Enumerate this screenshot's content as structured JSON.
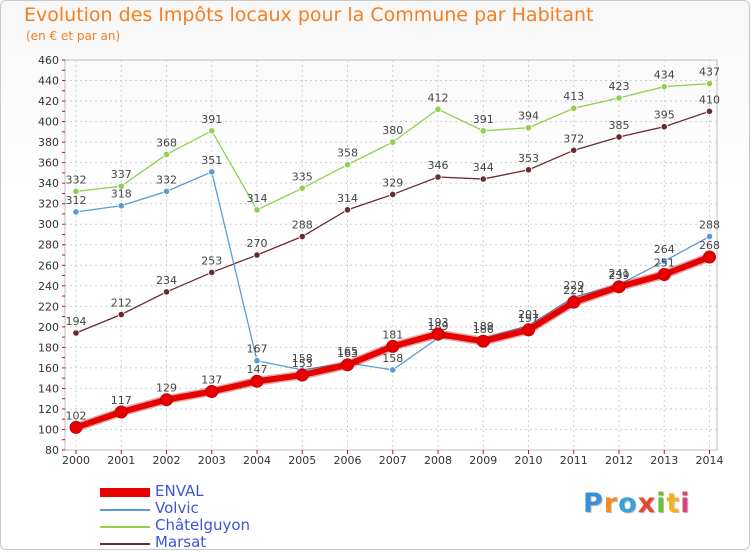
{
  "title": "Evolution des Impôts locaux pour la Commune par Habitant",
  "subtitle": "(en € et par an)",
  "logo": {
    "text": "Proxiti",
    "colors": [
      "#3a8fd8",
      "#f28c1e",
      "#3aa0d8",
      "#e8452d",
      "#6cbf2e",
      "#f2b21e",
      "#d8437a"
    ]
  },
  "chart_data": {
    "type": "line",
    "title": "Evolution des Impôts locaux pour la Commune par Habitant",
    "subtitle": "(en € et par an)",
    "xlabel": "",
    "ylabel": "",
    "categories": [
      "2000",
      "2001",
      "2002",
      "2003",
      "2004",
      "2005",
      "2006",
      "2007",
      "2008",
      "2009",
      "2010",
      "2011",
      "2012",
      "2013",
      "2014"
    ],
    "ylim": [
      80,
      460
    ],
    "ytick_step": 20,
    "grid": true,
    "legend": "bottom-left",
    "series": [
      {
        "name": "ENVAL",
        "color": "#e60000",
        "emphasis": true,
        "values": [
          102,
          117,
          129,
          137,
          147,
          153,
          163,
          181,
          193,
          186,
          197,
          224,
          239,
          251,
          268
        ],
        "labels": [
          "102",
          "117",
          "129",
          "137",
          "147",
          "153",
          "163",
          "181",
          "193",
          "186",
          "197",
          "224",
          "239",
          "251",
          "268"
        ]
      },
      {
        "name": "Volvic",
        "color": "#5b9bd5",
        "values": [
          312,
          318,
          332,
          351,
          167,
          158,
          165,
          158,
          189,
          189,
          201,
          229,
          241,
          264,
          288
        ],
        "labels": [
          "312",
          "318",
          "332",
          "351",
          "167",
          "158",
          "165",
          "158",
          "189",
          "189",
          "201",
          "229",
          "241",
          "264",
          "288"
        ]
      },
      {
        "name": "Châtelguyon",
        "color": "#8fd14f",
        "values": [
          332,
          337,
          368,
          391,
          314,
          335,
          358,
          380,
          412,
          391,
          394,
          413,
          423,
          434,
          437
        ],
        "labels": [
          "332",
          "337",
          "368",
          "391",
          "314",
          "335",
          "358",
          "380",
          "412",
          "391",
          "394",
          "413",
          "423",
          "434",
          "437"
        ]
      },
      {
        "name": "Marsat",
        "color": "#6b2a2e",
        "values": [
          194,
          212,
          234,
          253,
          270,
          288,
          314,
          329,
          346,
          344,
          353,
          372,
          385,
          395,
          410
        ],
        "labels": [
          "194",
          "212",
          "234",
          "253",
          "270",
          "288",
          "314",
          "329",
          "346",
          "344",
          "353",
          "372",
          "385",
          "395",
          "410"
        ]
      }
    ]
  }
}
